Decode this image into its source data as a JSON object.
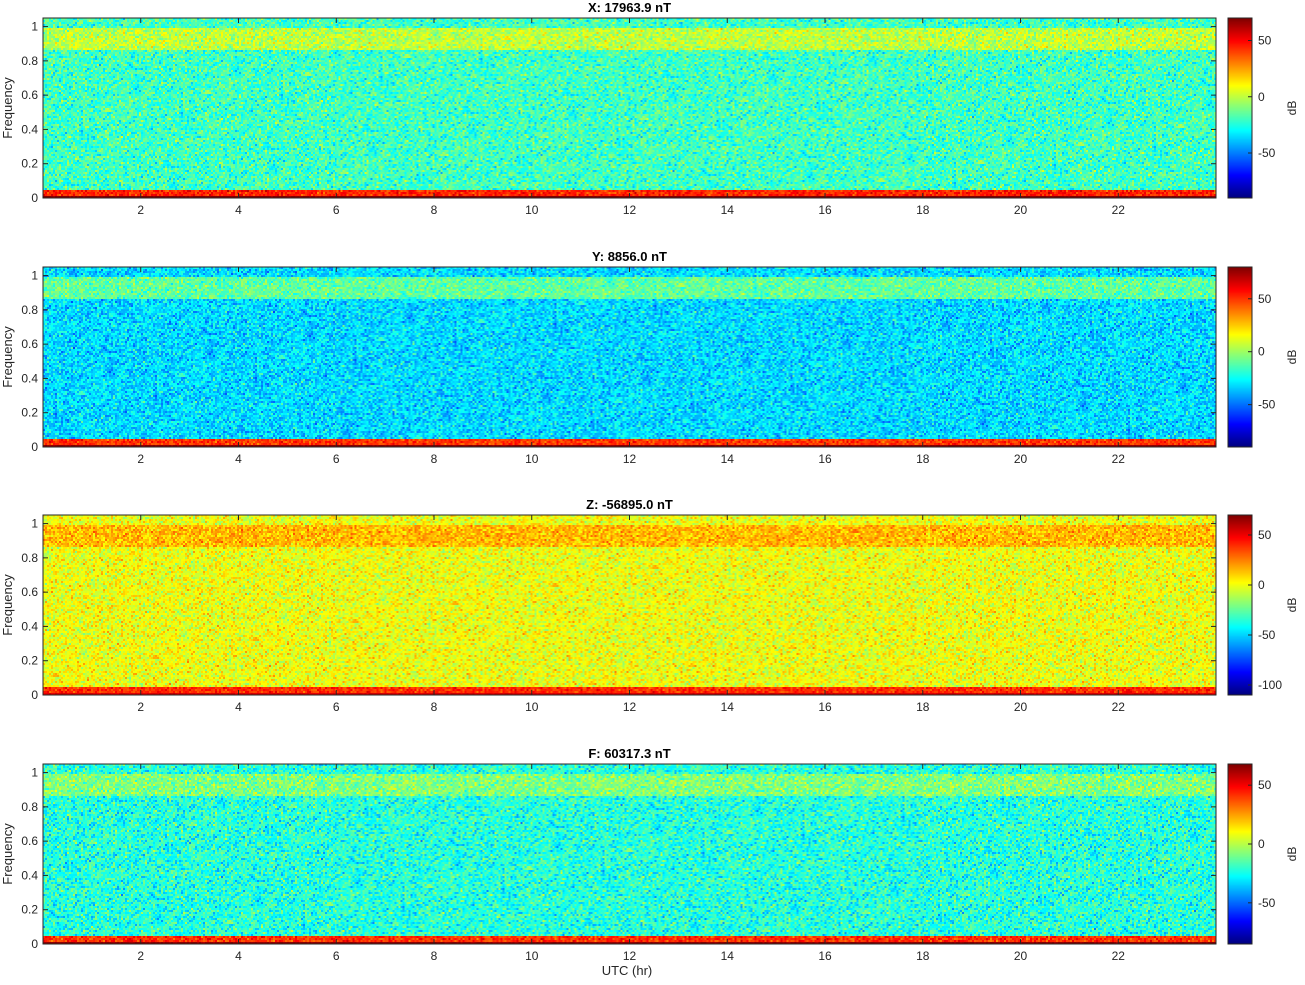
{
  "figure": {
    "xlabel": "UTC (hr)"
  },
  "chart_data": [
    {
      "type": "heatmap",
      "title": "X: 17963.9 nT",
      "xlabel": "",
      "ylabel": "Frequency",
      "xlim": [
        0,
        24
      ],
      "ylim": [
        0,
        1.05
      ],
      "x_ticks": [
        2,
        4,
        6,
        8,
        10,
        12,
        14,
        16,
        18,
        20,
        22
      ],
      "y_ticks": [
        0,
        0.2,
        0.4,
        0.6,
        0.8,
        1
      ],
      "colorbar": {
        "label": "dB",
        "ticks": [
          50,
          0,
          -50
        ],
        "clim": [
          -90,
          70
        ],
        "colormap": "jet"
      },
      "features": {
        "background_db": -20,
        "top_band_db": 0,
        "low_band_db": 45,
        "baseline_db": 70
      }
    },
    {
      "type": "heatmap",
      "title": "Y: 8856.0 nT",
      "xlabel": "",
      "ylabel": "Frequency",
      "xlim": [
        0,
        24
      ],
      "ylim": [
        0,
        1.05
      ],
      "x_ticks": [
        2,
        4,
        6,
        8,
        10,
        12,
        14,
        16,
        18,
        20,
        22
      ],
      "y_ticks": [
        0,
        0.2,
        0.4,
        0.6,
        0.8,
        1
      ],
      "colorbar": {
        "label": "dB",
        "ticks": [
          50,
          0,
          -50
        ],
        "clim": [
          -90,
          80
        ],
        "colormap": "jet"
      },
      "features": {
        "background_db": -32,
        "top_band_db": -10,
        "low_band_db": 50,
        "baseline_db": 78
      }
    },
    {
      "type": "heatmap",
      "title": "Z: -56895.0 nT",
      "xlabel": "",
      "ylabel": "Frequency",
      "xlim": [
        0,
        24
      ],
      "ylim": [
        0,
        1.05
      ],
      "x_ticks": [
        2,
        4,
        6,
        8,
        10,
        12,
        14,
        16,
        18,
        20,
        22
      ],
      "y_ticks": [
        0,
        0.2,
        0.4,
        0.6,
        0.8,
        1
      ],
      "colorbar": {
        "label": "dB",
        "ticks": [
          50,
          0,
          -50,
          -100
        ],
        "clim": [
          -110,
          70
        ],
        "colormap": "jet"
      },
      "features": {
        "background_db": 0,
        "top_band_db": 15,
        "low_band_db": 40,
        "baseline_db": 55
      }
    },
    {
      "type": "heatmap",
      "title": "F: 60317.3 nT",
      "xlabel": "",
      "ylabel": "Frequency",
      "xlim": [
        0,
        24
      ],
      "ylim": [
        0,
        1.05
      ],
      "x_ticks": [
        2,
        4,
        6,
        8,
        10,
        12,
        14,
        16,
        18,
        20,
        22
      ],
      "y_ticks": [
        0,
        0.2,
        0.4,
        0.6,
        0.8,
        1
      ],
      "colorbar": {
        "label": "dB",
        "ticks": [
          50,
          0,
          -50
        ],
        "clim": [
          -85,
          68
        ],
        "colormap": "jet"
      },
      "features": {
        "background_db": -22,
        "top_band_db": -8,
        "low_band_db": 42,
        "baseline_db": 66
      }
    }
  ]
}
